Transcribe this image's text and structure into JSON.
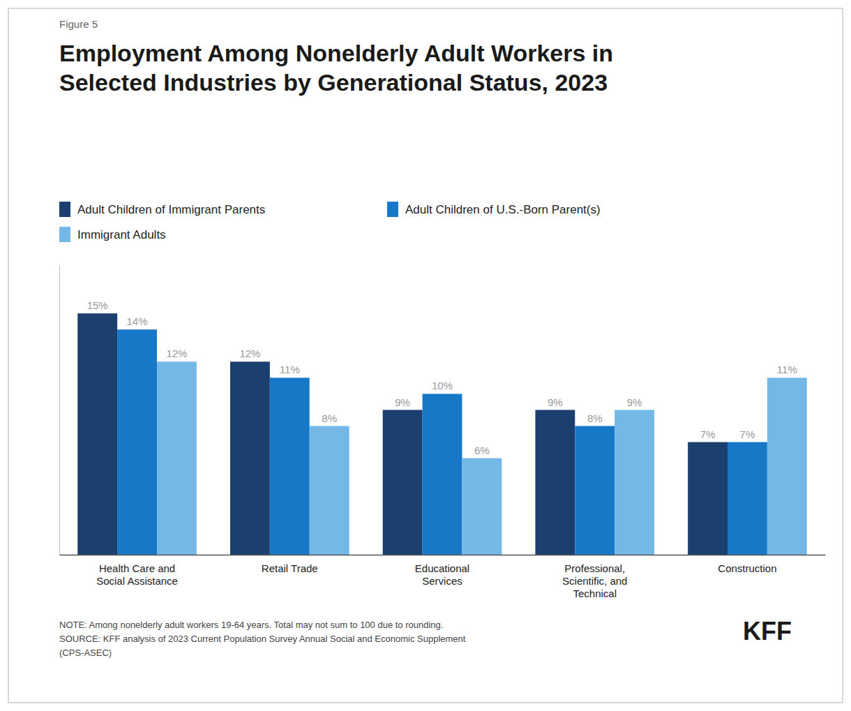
{
  "chart_data": {
    "type": "bar",
    "title": "Employment Among Nonelderly Adult Workers in\nSelected Industries by Generational Status, 2023",
    "categories": [
      "Health Care and\nSocial Assistance",
      "Retail Trade",
      "Educational\nServices",
      "Professional,\nScientific, and\nTechnical",
      "Construction"
    ],
    "series": [
      {
        "name": "Adult Children of Immigrant Parents",
        "color": "#1b3f6e",
        "values": [
          15,
          12,
          9,
          9,
          7
        ],
        "value_labels": [
          "15%",
          "12%",
          "9%",
          "9%",
          "7%"
        ]
      },
      {
        "name": "Adult Children of U.S.-Born Parent(s)",
        "color": "#1878c8",
        "values": [
          14,
          11,
          10,
          8,
          7
        ],
        "value_labels": [
          "14%",
          "11%",
          "10%",
          "8%",
          "7%"
        ]
      },
      {
        "name": "Immigrant Adults",
        "color": "#74b8e8",
        "values": [
          12,
          8,
          6,
          9,
          11
        ],
        "value_labels": [
          "12%",
          "8%",
          "6%",
          "9%",
          "11%"
        ]
      }
    ],
    "ylim": [
      0,
      18
    ],
    "grid": false,
    "legend": "top",
    "data_labels": true,
    "tick_labels": "x",
    "annotations": [
      "Figure 5",
      "NOTE: Among nonelderly adult workers 19-64 years. Total may not sum to 100 due to rounding.\nSOURCE: KFF analysis of 2023 Current Population Survey Annual Social and Economic Supplement\n(CPS-ASEC)",
      "KFF"
    ]
  }
}
